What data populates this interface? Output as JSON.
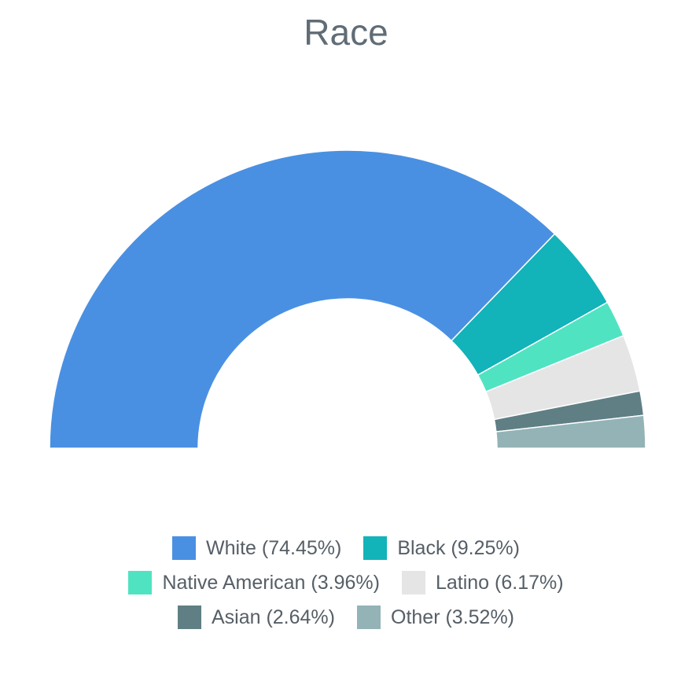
{
  "chart_data": {
    "type": "pie",
    "variant": "semi-donut",
    "title": "Race",
    "series": [
      {
        "name": "White",
        "label": "White (74.45%)",
        "value": 74.45,
        "color": "#4a90e2"
      },
      {
        "name": "Black",
        "label": "Black (9.25%)",
        "value": 9.25,
        "color": "#12b3b9"
      },
      {
        "name": "Native American",
        "label": "Native American (3.96%)",
        "value": 3.96,
        "color": "#50e3c2"
      },
      {
        "name": "Latino",
        "label": "Latino (6.17%)",
        "value": 6.17,
        "color": "#e5e5e5"
      },
      {
        "name": "Asian",
        "label": "Asian (2.64%)",
        "value": 2.64,
        "color": "#5f7f84"
      },
      {
        "name": "Other",
        "label": "Other (3.52%)",
        "value": 3.52,
        "color": "#93b3b7"
      }
    ],
    "legend": {
      "placement": "bottom",
      "rows": [
        [
          "White",
          "Black"
        ],
        [
          "Native American",
          "Latino"
        ],
        [
          "Asian",
          "Other"
        ]
      ]
    }
  }
}
